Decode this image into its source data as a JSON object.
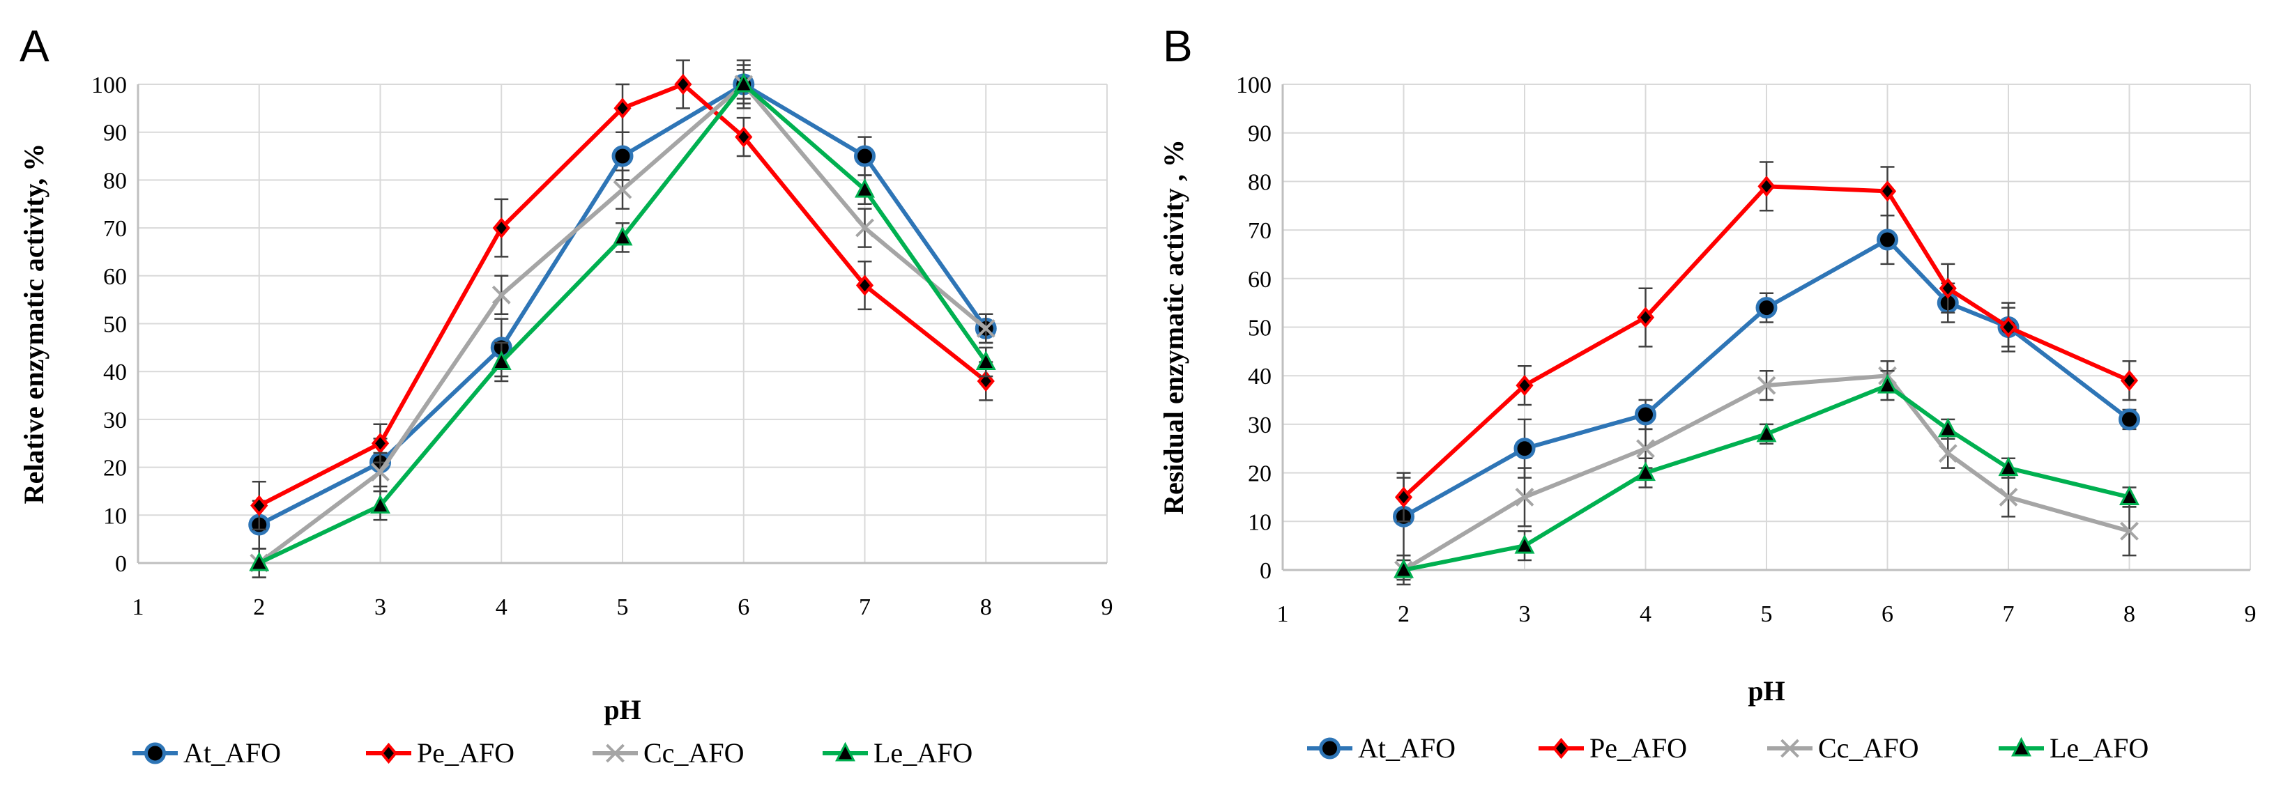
{
  "chart_data": [
    {
      "panel_label": "A",
      "type": "line",
      "xlabel": "pH",
      "ylabel": "Relative enzymatic activity, %",
      "xlim": [
        1,
        9
      ],
      "ylim": [
        0,
        100
      ],
      "x_ticks": [
        "1",
        "2",
        "3",
        "4",
        "5",
        "6",
        "7",
        "8",
        "9"
      ],
      "y_ticks": [
        "0",
        "10",
        "20",
        "30",
        "40",
        "50",
        "60",
        "70",
        "80",
        "90",
        "100"
      ],
      "grid": true,
      "legend": "bottom",
      "series": [
        {
          "name": "At_AFO",
          "color": "#2E75B6",
          "marker": "circle",
          "points": [
            {
              "x": 2,
              "y": 8,
              "err": 5
            },
            {
              "x": 3,
              "y": 21,
              "err": 5
            },
            {
              "x": 4,
              "y": 45,
              "err": 6
            },
            {
              "x": 5,
              "y": 85,
              "err": 5
            },
            {
              "x": 6,
              "y": 100,
              "err": 5
            },
            {
              "x": 7,
              "y": 85,
              "err": 4
            },
            {
              "x": 8,
              "y": 49,
              "err": 3
            }
          ]
        },
        {
          "name": "Pe_AFO",
          "color": "#FF0000",
          "marker": "diamond",
          "points": [
            {
              "x": 2,
              "y": 12,
              "err": 5
            },
            {
              "x": 3,
              "y": 25,
              "err": 4
            },
            {
              "x": 4,
              "y": 70,
              "err": 6
            },
            {
              "x": 5,
              "y": 95,
              "err": 5
            },
            {
              "x": 5.5,
              "y": 100,
              "err": 5
            },
            {
              "x": 6,
              "y": 89,
              "err": 4
            },
            {
              "x": 7,
              "y": 58,
              "err": 5
            },
            {
              "x": 8,
              "y": 38,
              "err": 4
            }
          ]
        },
        {
          "name": "Cc_AFO",
          "color": "#A5A5A5",
          "marker": "x",
          "points": [
            {
              "x": 2,
              "y": 0,
              "err": 3
            },
            {
              "x": 3,
              "y": 19,
              "err": 4
            },
            {
              "x": 4,
              "y": 56,
              "err": 4
            },
            {
              "x": 5,
              "y": 78,
              "err": 4
            },
            {
              "x": 6,
              "y": 100,
              "err": 3
            },
            {
              "x": 7,
              "y": 70,
              "err": 4
            },
            {
              "x": 8,
              "y": 49,
              "err": 3
            }
          ]
        },
        {
          "name": "Le_AFO",
          "color": "#00B050",
          "marker": "triangle",
          "points": [
            {
              "x": 2,
              "y": 0,
              "err": 3
            },
            {
              "x": 3,
              "y": 12,
              "err": 3
            },
            {
              "x": 4,
              "y": 42,
              "err": 4
            },
            {
              "x": 5,
              "y": 68,
              "err": 3
            },
            {
              "x": 6,
              "y": 100,
              "err": 4
            },
            {
              "x": 7,
              "y": 78,
              "err": 3
            },
            {
              "x": 8,
              "y": 42,
              "err": 3
            }
          ]
        }
      ]
    },
    {
      "panel_label": "B",
      "type": "line",
      "xlabel": "pH",
      "ylabel": "Residual enzymatic activity , %",
      "xlim": [
        1,
        9
      ],
      "ylim": [
        0,
        100
      ],
      "x_ticks": [
        "1",
        "2",
        "3",
        "4",
        "5",
        "6",
        "7",
        "8",
        "9"
      ],
      "y_ticks": [
        "0",
        "10",
        "20",
        "30",
        "40",
        "50",
        "60",
        "70",
        "80",
        "90",
        "100"
      ],
      "grid": true,
      "legend": "bottom",
      "series": [
        {
          "name": "At_AFO",
          "color": "#2E75B6",
          "marker": "circle",
          "points": [
            {
              "x": 2,
              "y": 11,
              "err": 8
            },
            {
              "x": 3,
              "y": 25,
              "err": 6
            },
            {
              "x": 4,
              "y": 32,
              "err": 3
            },
            {
              "x": 5,
              "y": 54,
              "err": 3
            },
            {
              "x": 6,
              "y": 68,
              "err": 5
            },
            {
              "x": 6.5,
              "y": 55,
              "err": 4
            },
            {
              "x": 7,
              "y": 50,
              "err": 4
            },
            {
              "x": 8,
              "y": 31,
              "err": 2
            }
          ]
        },
        {
          "name": "Pe_AFO",
          "color": "#FF0000",
          "marker": "diamond",
          "points": [
            {
              "x": 2,
              "y": 15,
              "err": 5
            },
            {
              "x": 3,
              "y": 38,
              "err": 4
            },
            {
              "x": 4,
              "y": 52,
              "err": 6
            },
            {
              "x": 5,
              "y": 79,
              "err": 5
            },
            {
              "x": 6,
              "y": 78,
              "err": 5
            },
            {
              "x": 6.5,
              "y": 58,
              "err": 5
            },
            {
              "x": 7,
              "y": 50,
              "err": 5
            },
            {
              "x": 8,
              "y": 39,
              "err": 4
            }
          ]
        },
        {
          "name": "Cc_AFO",
          "color": "#A5A5A5",
          "marker": "x",
          "points": [
            {
              "x": 2,
              "y": 0,
              "err": 3
            },
            {
              "x": 3,
              "y": 15,
              "err": 6
            },
            {
              "x": 4,
              "y": 25,
              "err": 4
            },
            {
              "x": 5,
              "y": 38,
              "err": 3
            },
            {
              "x": 6,
              "y": 40,
              "err": 3
            },
            {
              "x": 6.5,
              "y": 24,
              "err": 3
            },
            {
              "x": 7,
              "y": 15,
              "err": 4
            },
            {
              "x": 8,
              "y": 8,
              "err": 5
            }
          ]
        },
        {
          "name": "Le_AFO",
          "color": "#00B050",
          "marker": "triangle",
          "points": [
            {
              "x": 2,
              "y": 0,
              "err": 2
            },
            {
              "x": 3,
              "y": 5,
              "err": 3
            },
            {
              "x": 4,
              "y": 20,
              "err": 3
            },
            {
              "x": 5,
              "y": 28,
              "err": 2
            },
            {
              "x": 6,
              "y": 38,
              "err": 3
            },
            {
              "x": 6.5,
              "y": 29,
              "err": 2
            },
            {
              "x": 7,
              "y": 21,
              "err": 2
            },
            {
              "x": 8,
              "y": 15,
              "err": 2
            }
          ]
        }
      ]
    }
  ]
}
